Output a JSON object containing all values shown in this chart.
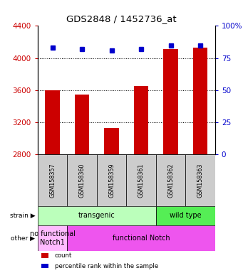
{
  "title": "GDS2848 / 1452736_at",
  "categories": [
    "GSM158357",
    "GSM158360",
    "GSM158359",
    "GSM158361",
    "GSM158362",
    "GSM158363"
  ],
  "bar_values": [
    3600,
    3540,
    3130,
    3650,
    4110,
    4130
  ],
  "bar_color": "#cc0000",
  "percentile_values": [
    4130,
    4110,
    4095,
    4110,
    4155,
    4160
  ],
  "percentile_color": "#0000cc",
  "ylim_left": [
    2800,
    4400
  ],
  "yticks_left": [
    2800,
    3200,
    3600,
    4000,
    4400
  ],
  "ylim_right": [
    0,
    100
  ],
  "yticks_right": [
    0,
    25,
    50,
    75,
    100
  ],
  "ytick_labels_right": [
    "0",
    "25",
    "50",
    "75",
    "100%"
  ],
  "left_tick_color": "#cc0000",
  "right_tick_color": "#0000cc",
  "grid_lines": [
    3200,
    3600,
    4000
  ],
  "strain_labels": [
    {
      "text": "transgenic",
      "start": 0,
      "end": 4,
      "color": "#bbffbb"
    },
    {
      "text": "wild type",
      "start": 4,
      "end": 6,
      "color": "#55ee55"
    }
  ],
  "other_labels": [
    {
      "text": "no functional\nNotch1",
      "start": 0,
      "end": 1,
      "color": "#ffbbff"
    },
    {
      "text": "functional Notch",
      "start": 1,
      "end": 6,
      "color": "#ee55ee"
    }
  ],
  "bg_color": "#ffffff",
  "tick_label_area_color": "#cccccc",
  "legend_items": [
    {
      "color": "#cc0000",
      "label": "count"
    },
    {
      "color": "#0000cc",
      "label": "percentile rank within the sample"
    }
  ],
  "bar_width": 0.5
}
